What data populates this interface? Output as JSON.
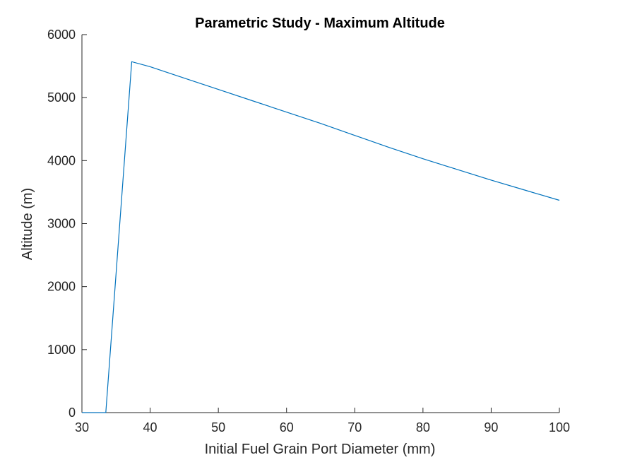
{
  "chart_data": {
    "type": "line",
    "title": "Parametric Study - Maximum Altitude",
    "xlabel": "Initial Fuel Grain Port Diameter (mm)",
    "ylabel": "Altitude (m)",
    "xlim": [
      30,
      100
    ],
    "ylim": [
      0,
      6000
    ],
    "xticks": [
      30,
      40,
      50,
      60,
      70,
      80,
      90,
      100
    ],
    "yticks": [
      0,
      1000,
      2000,
      3000,
      4000,
      5000,
      6000
    ],
    "xtick_labels": [
      "30",
      "40",
      "50",
      "60",
      "70",
      "80",
      "90",
      "100"
    ],
    "ytick_labels": [
      "0",
      "1000",
      "2000",
      "3000",
      "4000",
      "5000",
      "6000"
    ],
    "grid": false,
    "box": false,
    "series": [
      {
        "color": "#0072BD",
        "x": [
          30,
          33.5,
          37.3,
          40,
          45,
          50,
          55,
          60,
          65,
          70,
          75,
          80,
          85,
          90,
          95,
          100
        ],
        "y": [
          0,
          0,
          5570,
          5490,
          5310,
          5130,
          4950,
          4770,
          4590,
          4400,
          4210,
          4030,
          3860,
          3690,
          3530,
          3370
        ]
      }
    ]
  }
}
